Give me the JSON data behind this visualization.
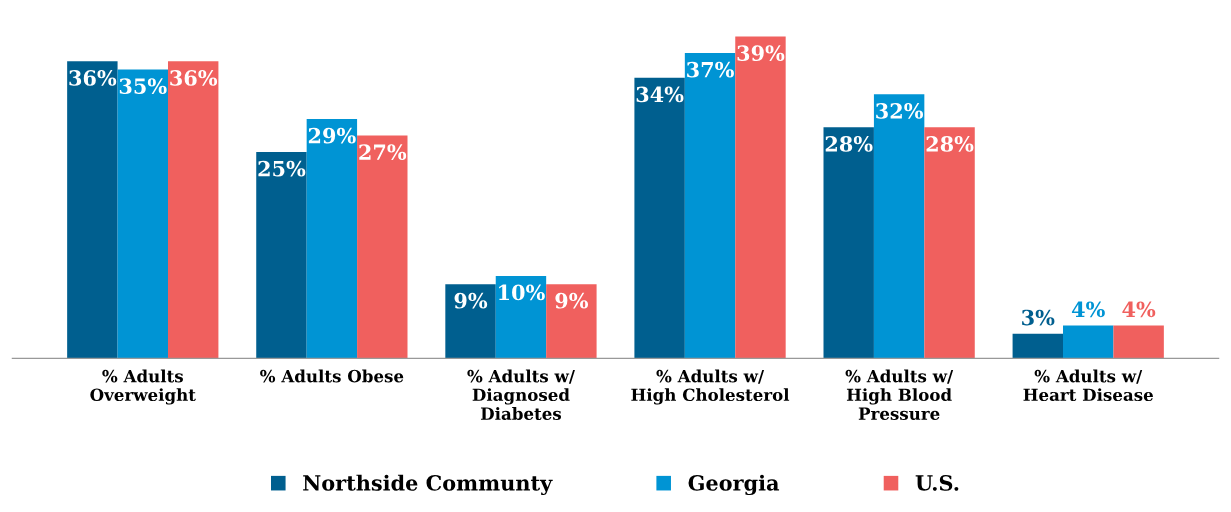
{
  "chart_data": {
    "type": "bar",
    "categories": [
      "% Adults\nOverweight",
      "% Adults Obese",
      "% Adults w/\nDiagnosed\nDiabetes",
      "% Adults w/\nHigh Cholesterol",
      "% Adults w/\nHigh Blood\nPressure",
      "% Adults w/\nHeart Disease"
    ],
    "series": [
      {
        "name": "Northside Communty",
        "color": "#005f8f",
        "values": [
          36,
          25,
          9,
          34,
          28,
          3
        ],
        "value_labels": [
          "36%",
          "25%",
          "9%",
          "34%",
          "28%",
          "3%"
        ]
      },
      {
        "name": "Georgia",
        "color": "#0094d4",
        "values": [
          35,
          29,
          10,
          37,
          32,
          4
        ],
        "value_labels": [
          "35%",
          "29%",
          "10%",
          "37%",
          "32%",
          "4%"
        ]
      },
      {
        "name": "U.S.",
        "color": "#f0605e",
        "values": [
          36,
          27,
          9,
          39,
          28,
          4
        ],
        "value_labels": [
          "36%",
          "27%",
          "9%",
          "39%",
          "28%",
          "4%"
        ]
      }
    ],
    "legend": "bottom",
    "grid": false
  }
}
